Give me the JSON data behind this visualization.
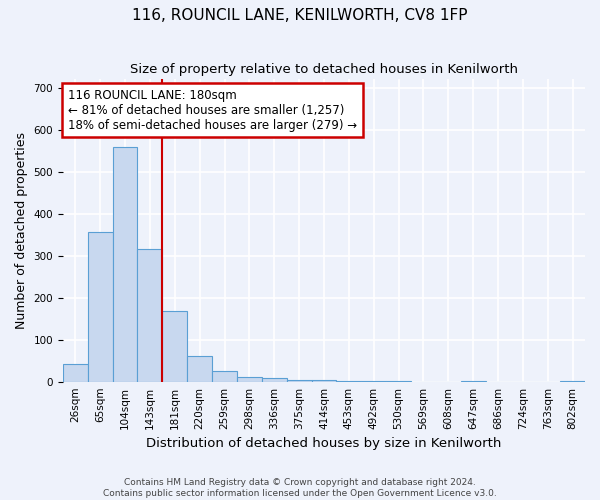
{
  "title": "116, ROUNCIL LANE, KENILWORTH, CV8 1FP",
  "subtitle": "Size of property relative to detached houses in Kenilworth",
  "xlabel": "Distribution of detached houses by size in Kenilworth",
  "ylabel": "Number of detached properties",
  "bar_labels": [
    "26sqm",
    "65sqm",
    "104sqm",
    "143sqm",
    "181sqm",
    "220sqm",
    "259sqm",
    "298sqm",
    "336sqm",
    "375sqm",
    "414sqm",
    "453sqm",
    "492sqm",
    "530sqm",
    "569sqm",
    "608sqm",
    "647sqm",
    "686sqm",
    "724sqm",
    "763sqm",
    "802sqm"
  ],
  "bar_values": [
    42,
    357,
    560,
    315,
    168,
    60,
    25,
    12,
    8,
    5,
    3,
    2,
    2,
    1,
    0,
    0,
    1,
    0,
    0,
    0,
    1
  ],
  "bar_color": "#c8d8ef",
  "bar_edge_color": "#5a9fd4",
  "red_line_x": 4.0,
  "annotation_line1": "116 ROUNCIL LANE: 180sqm",
  "annotation_line2": "← 81% of detached houses are smaller (1,257)",
  "annotation_line3": "18% of semi-detached houses are larger (279) →",
  "annotation_box_color": "white",
  "annotation_border_color": "#cc0000",
  "red_line_color": "#cc0000",
  "ylim": [
    0,
    720
  ],
  "yticks": [
    0,
    100,
    200,
    300,
    400,
    500,
    600,
    700
  ],
  "footer_line1": "Contains HM Land Registry data © Crown copyright and database right 2024.",
  "footer_line2": "Contains public sector information licensed under the Open Government Licence v3.0.",
  "bg_color": "#eef2fb",
  "grid_color": "white",
  "title_fontsize": 11,
  "subtitle_fontsize": 9.5,
  "axis_label_fontsize": 9,
  "tick_fontsize": 7.5,
  "footer_fontsize": 6.5
}
